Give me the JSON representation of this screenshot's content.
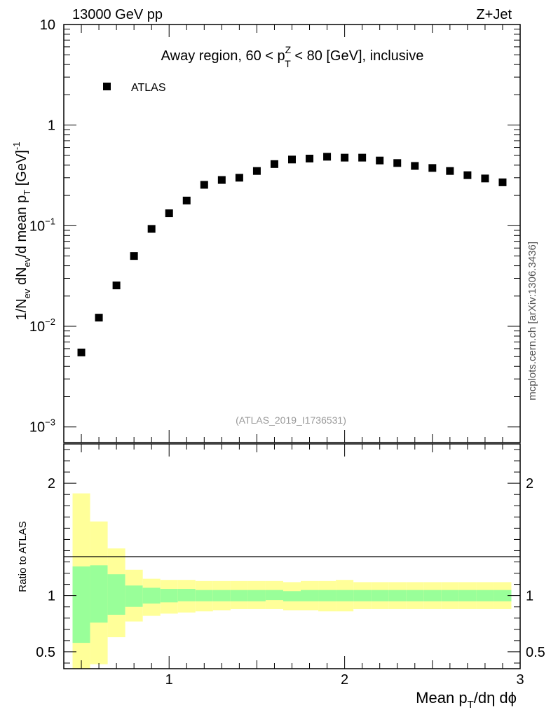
{
  "header": {
    "left": "13000 GeV pp",
    "right": "Z+Jet"
  },
  "watermark": {
    "side": "mcplots.cern.ch [arXiv:1306.3436]",
    "analysis": "(ATLAS_2019_I1736531)"
  },
  "colors": {
    "inner_band": "#99ff99",
    "outer_band": "#ffff99",
    "marker": "#000000"
  },
  "chart_data": [
    {
      "type": "scatter",
      "panel": "main",
      "title": "Away region, 60 < pT^Z < 80 [GeV], inclusive",
      "title_parts": {
        "pre": "Away region, 60 < p",
        "sup": "Z",
        "sub": "T",
        "post": " < 80 [GeV], inclusive"
      },
      "ylabel": "1/N_ev dN_ev/d mean p_T [GeV]^-1",
      "ylabel_parts": {
        "a": "1/N",
        "ev1": "ev",
        "b": " dN",
        "ev2": "ev",
        "c": "/d mean p",
        "T": "T",
        "d": " [GeV]",
        "exp": "-1"
      },
      "yscale": "log",
      "ylim": [
        0.0007,
        10
      ],
      "xlim": [
        0.4,
        3.0
      ],
      "yticks": [
        {
          "v": 10,
          "base": "10",
          "exp": ""
        },
        {
          "v": 1,
          "base": "1",
          "exp": ""
        },
        {
          "v": 0.1,
          "base": "10",
          "exp": "−1"
        },
        {
          "v": 0.01,
          "base": "10",
          "exp": "−2"
        },
        {
          "v": 0.001,
          "base": "10",
          "exp": "−3"
        }
      ],
      "legend": {
        "label": "ATLAS",
        "position": "top-left"
      },
      "series": [
        {
          "name": "ATLAS",
          "x": [
            0.5,
            0.6,
            0.7,
            0.8,
            0.9,
            1.0,
            1.1,
            1.2,
            1.3,
            1.4,
            1.5,
            1.6,
            1.7,
            1.8,
            1.9,
            2.0,
            2.1,
            2.2,
            2.3,
            2.4,
            2.5,
            2.6,
            2.7,
            2.8,
            2.9
          ],
          "values": [
            0.0055,
            0.0122,
            0.0255,
            0.05,
            0.093,
            0.133,
            0.178,
            0.255,
            0.285,
            0.3,
            0.35,
            0.41,
            0.455,
            0.465,
            0.485,
            0.475,
            0.475,
            0.445,
            0.42,
            0.393,
            0.375,
            0.35,
            0.318,
            0.295,
            0.27
          ]
        }
      ]
    },
    {
      "type": "area",
      "panel": "ratio",
      "ylabel": "Ratio to ATLAS",
      "xlabel": "Mean pT/dη dϕ",
      "xlabel_parts": {
        "a": "Mean p",
        "T": "T",
        "b": "/dη dϕ"
      },
      "ylim": [
        0.35,
        2.35
      ],
      "xlim": [
        0.4,
        3.0
      ],
      "xticks": [
        1,
        2,
        3
      ],
      "yticks": [
        0.5,
        1,
        2
      ],
      "ytick_labels": [
        "0.5",
        "1",
        "2"
      ],
      "bins": [
        {
          "lo": 0.45,
          "hi": 0.55,
          "inner": [
            0.58,
            1.26
          ],
          "outer": [
            0.0,
            1.91
          ]
        },
        {
          "lo": 0.55,
          "hi": 0.65,
          "inner": [
            0.76,
            1.27
          ],
          "outer": [
            0.39,
            1.66
          ]
        },
        {
          "lo": 0.65,
          "hi": 0.75,
          "inner": [
            0.83,
            1.19
          ],
          "outer": [
            0.63,
            1.42
          ]
        },
        {
          "lo": 0.75,
          "hi": 0.85,
          "inner": [
            0.9,
            1.09
          ],
          "outer": [
            0.77,
            1.23
          ]
        },
        {
          "lo": 0.85,
          "hi": 0.95,
          "inner": [
            0.93,
            1.07
          ],
          "outer": [
            0.82,
            1.15
          ]
        },
        {
          "lo": 0.95,
          "hi": 1.05,
          "inner": [
            0.94,
            1.06
          ],
          "outer": [
            0.84,
            1.14
          ]
        },
        {
          "lo": 1.05,
          "hi": 1.15,
          "inner": [
            0.95,
            1.06
          ],
          "outer": [
            0.85,
            1.14
          ]
        },
        {
          "lo": 1.15,
          "hi": 1.25,
          "inner": [
            0.95,
            1.05
          ],
          "outer": [
            0.86,
            1.13
          ]
        },
        {
          "lo": 1.25,
          "hi": 1.35,
          "inner": [
            0.95,
            1.05
          ],
          "outer": [
            0.87,
            1.13
          ]
        },
        {
          "lo": 1.35,
          "hi": 1.45,
          "inner": [
            0.95,
            1.05
          ],
          "outer": [
            0.88,
            1.13
          ]
        },
        {
          "lo": 1.45,
          "hi": 1.55,
          "inner": [
            0.95,
            1.05
          ],
          "outer": [
            0.88,
            1.13
          ]
        },
        {
          "lo": 1.55,
          "hi": 1.65,
          "inner": [
            0.96,
            1.05
          ],
          "outer": [
            0.88,
            1.13
          ]
        },
        {
          "lo": 1.65,
          "hi": 1.75,
          "inner": [
            0.95,
            1.04
          ],
          "outer": [
            0.87,
            1.12
          ]
        },
        {
          "lo": 1.75,
          "hi": 1.85,
          "inner": [
            0.95,
            1.05
          ],
          "outer": [
            0.87,
            1.13
          ]
        },
        {
          "lo": 1.85,
          "hi": 1.95,
          "inner": [
            0.95,
            1.05
          ],
          "outer": [
            0.86,
            1.13
          ]
        },
        {
          "lo": 1.95,
          "hi": 2.05,
          "inner": [
            0.95,
            1.05
          ],
          "outer": [
            0.86,
            1.14
          ]
        },
        {
          "lo": 2.05,
          "hi": 2.15,
          "inner": [
            0.95,
            1.05
          ],
          "outer": [
            0.88,
            1.12
          ]
        },
        {
          "lo": 2.15,
          "hi": 2.25,
          "inner": [
            0.95,
            1.05
          ],
          "outer": [
            0.88,
            1.12
          ]
        },
        {
          "lo": 2.25,
          "hi": 2.35,
          "inner": [
            0.95,
            1.05
          ],
          "outer": [
            0.88,
            1.12
          ]
        },
        {
          "lo": 2.35,
          "hi": 2.45,
          "inner": [
            0.95,
            1.05
          ],
          "outer": [
            0.88,
            1.12
          ]
        },
        {
          "lo": 2.45,
          "hi": 2.55,
          "inner": [
            0.95,
            1.05
          ],
          "outer": [
            0.88,
            1.12
          ]
        },
        {
          "lo": 2.55,
          "hi": 2.65,
          "inner": [
            0.95,
            1.05
          ],
          "outer": [
            0.88,
            1.12
          ]
        },
        {
          "lo": 2.65,
          "hi": 2.75,
          "inner": [
            0.95,
            1.05
          ],
          "outer": [
            0.88,
            1.12
          ]
        },
        {
          "lo": 2.75,
          "hi": 2.85,
          "inner": [
            0.95,
            1.05
          ],
          "outer": [
            0.88,
            1.12
          ]
        },
        {
          "lo": 2.85,
          "hi": 2.95,
          "inner": [
            0.95,
            1.05
          ],
          "outer": [
            0.88,
            1.12
          ]
        }
      ]
    }
  ]
}
